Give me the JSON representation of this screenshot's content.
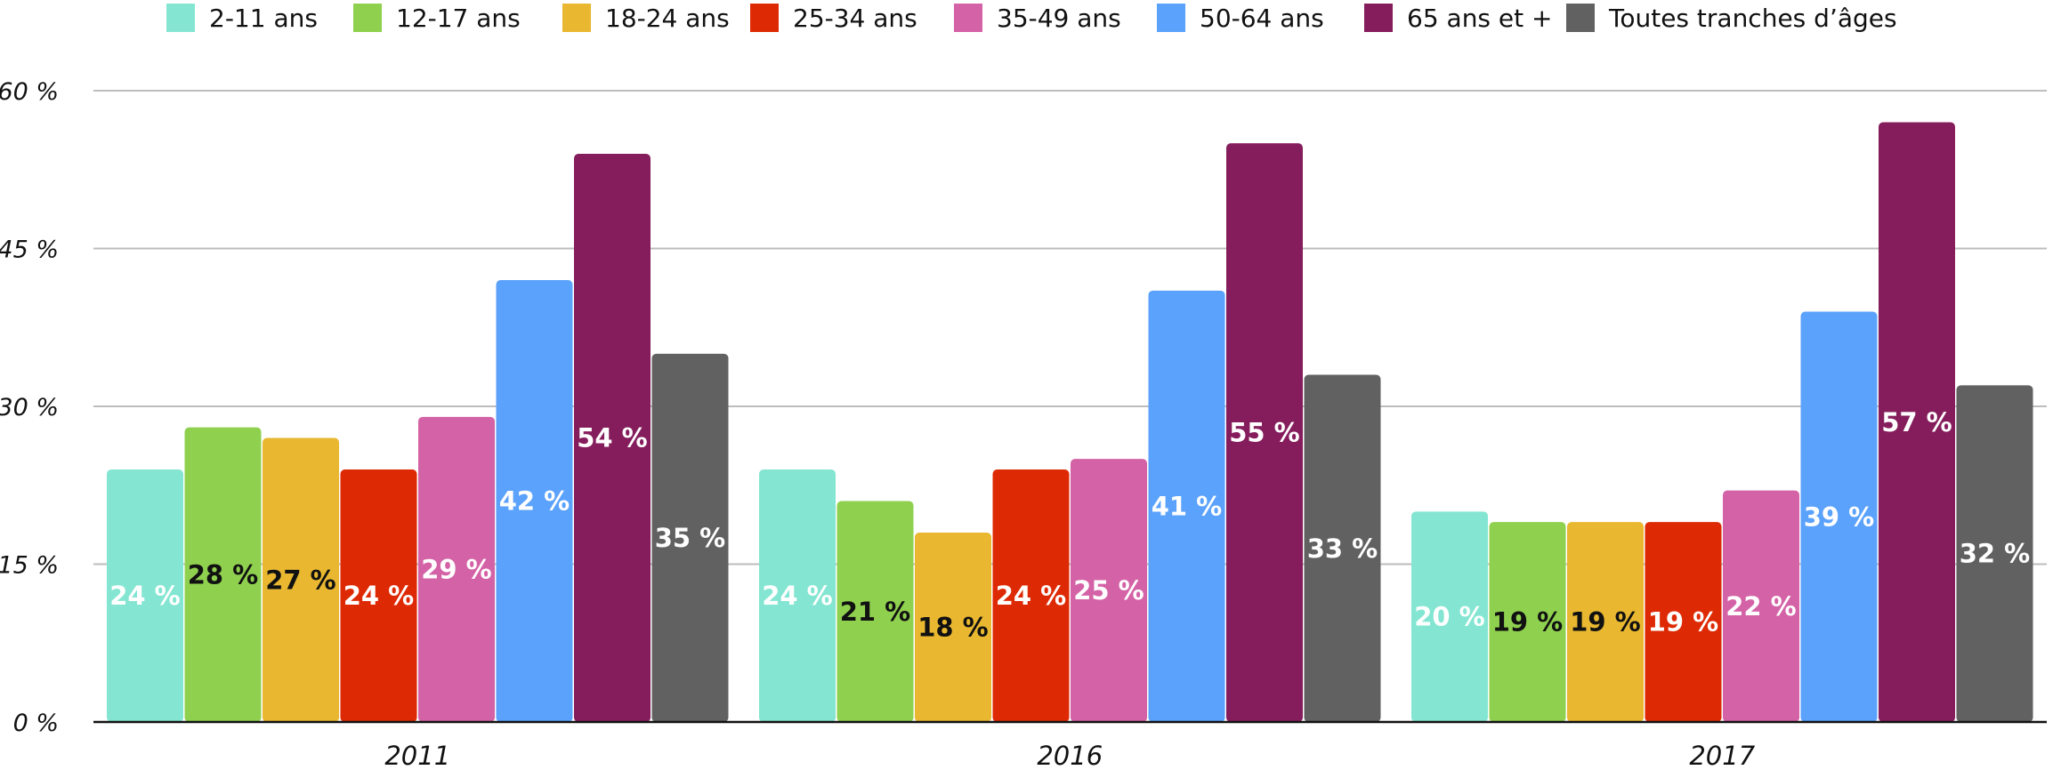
{
  "chart_data": {
    "type": "bar",
    "title": "",
    "xlabel": "",
    "ylabel": "",
    "categories": [
      "2011",
      "2016",
      "2017"
    ],
    "ylim": [
      0,
      60
    ],
    "yticks": [
      0,
      15,
      30,
      45,
      60
    ],
    "ytick_labels": [
      "0 %",
      "15 %",
      "30 %",
      "45 %",
      "60 %"
    ],
    "grid": true,
    "legend": "top",
    "series": [
      {
        "name": "2-11 ans",
        "color": "#84E6D2",
        "label_color": "#ffffff",
        "values": [
          24,
          24,
          20
        ],
        "labels": [
          "24 %",
          "24 %",
          "20 %"
        ]
      },
      {
        "name": "12-17 ans",
        "color": "#8FD14F",
        "label_color": "#111111",
        "values": [
          28,
          21,
          19
        ],
        "labels": [
          "28 %",
          "21 %",
          "19 %"
        ]
      },
      {
        "name": "18-24 ans",
        "color": "#E9B830",
        "label_color": "#111111",
        "values": [
          27,
          18,
          19
        ],
        "labels": [
          "27 %",
          "18 %",
          "19 %"
        ]
      },
      {
        "name": "25-34 ans",
        "color": "#DE2A04",
        "label_color": "#ffffff",
        "values": [
          24,
          24,
          19
        ],
        "labels": [
          "24 %",
          "24 %",
          "19 %"
        ]
      },
      {
        "name": "35-49 ans",
        "color": "#D462A6",
        "label_color": "#ffffff",
        "values": [
          29,
          25,
          22
        ],
        "labels": [
          "29 %",
          "25 %",
          "22 %"
        ]
      },
      {
        "name": "50-64 ans",
        "color": "#5BA2FC",
        "label_color": "#ffffff",
        "values": [
          42,
          41,
          39
        ],
        "labels": [
          "42 %",
          "41 %",
          "39 %"
        ]
      },
      {
        "name": "65 ans et +",
        "color": "#851D5C",
        "label_color": "#ffffff",
        "values": [
          54,
          55,
          57
        ],
        "labels": [
          "54 %",
          "55 %",
          "57 %"
        ]
      },
      {
        "name": "Toutes tranches d’âges",
        "color": "#616161",
        "label_color": "#ffffff",
        "values": [
          35,
          33,
          32
        ],
        "labels": [
          "35 %",
          "33 %",
          "32 %"
        ]
      }
    ]
  }
}
